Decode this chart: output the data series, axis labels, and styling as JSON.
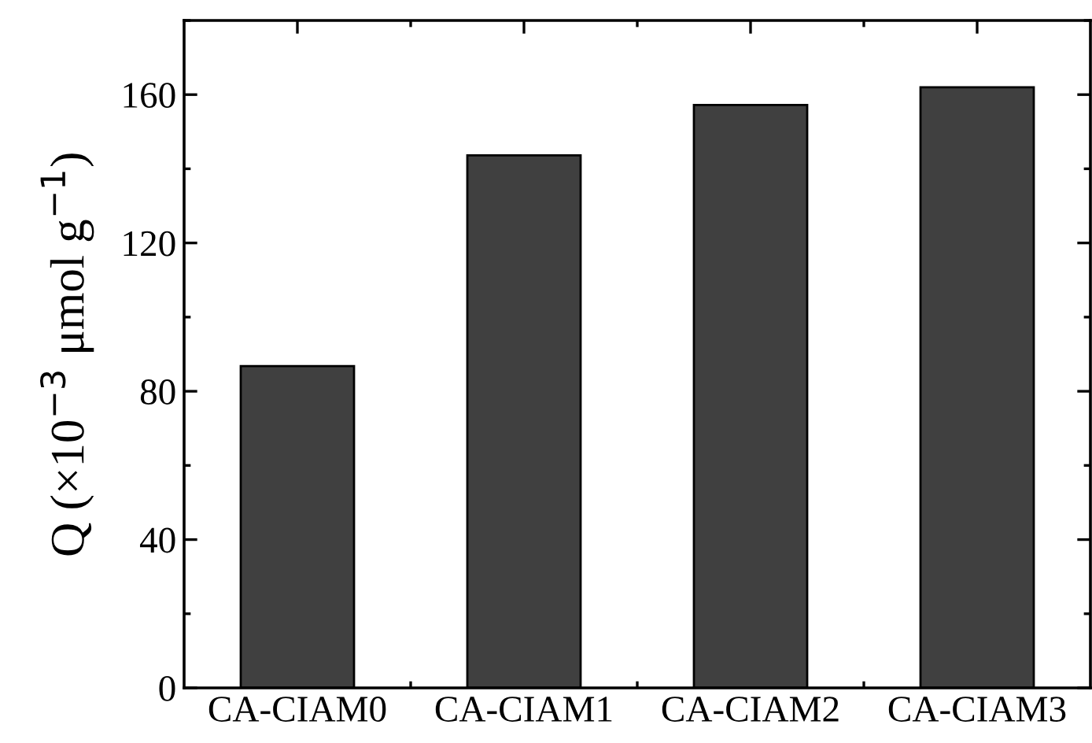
{
  "chart_data": {
    "type": "bar",
    "ylabel": "Q (×10$^{−3}$ μmol g$^{−1}$)",
    "categories": [
      "CA-CIAM0",
      "CA-CIAM1",
      "CA-CIAM2",
      "CA-CIAM3"
    ],
    "values": [
      86.8,
      143.6,
      157.2,
      162.0
    ],
    "color": "#404040",
    "ylim": [
      0,
      180
    ],
    "yticks": [
      0,
      40,
      80,
      120,
      160
    ],
    "grid": false,
    "legend": false
  }
}
